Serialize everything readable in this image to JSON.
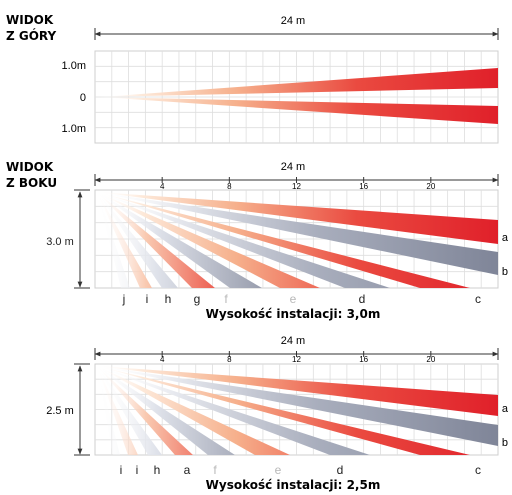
{
  "top_view": {
    "title_line1": "WIDOK",
    "title_line2": "Z GÓRY",
    "length_label": "24 m",
    "row_labels": [
      "1.0m",
      "0",
      "1.0m"
    ]
  },
  "side_view": {
    "title_line1": "WIDOK",
    "title_line2": "Z BOKU",
    "length_label": "24 m",
    "ticks": [
      "4",
      "8",
      "12",
      "16",
      "20"
    ],
    "height_label": "3.0 m",
    "zone_letters": [
      "j",
      "i",
      "h",
      "g",
      "f",
      "e",
      "d",
      "c"
    ],
    "beam_labels": [
      "a",
      "b"
    ],
    "caption": "Wysokość instalacji: 3,0m"
  },
  "side_view_low": {
    "length_label": "24 m",
    "ticks": [
      "4",
      "8",
      "12",
      "16",
      "20"
    ],
    "height_label": "2.5 m",
    "zone_letters": [
      "i",
      "i",
      "h",
      "a",
      "f",
      "e",
      "d",
      "c"
    ],
    "beam_labels": [
      "a",
      "b"
    ],
    "caption": "Wysokość instalacji: 2,5m"
  },
  "colors": {
    "red": "#e0202a",
    "gray": "#7f8598",
    "faint_letter": "#b8b8b8",
    "grid": "#d6d6d6"
  }
}
